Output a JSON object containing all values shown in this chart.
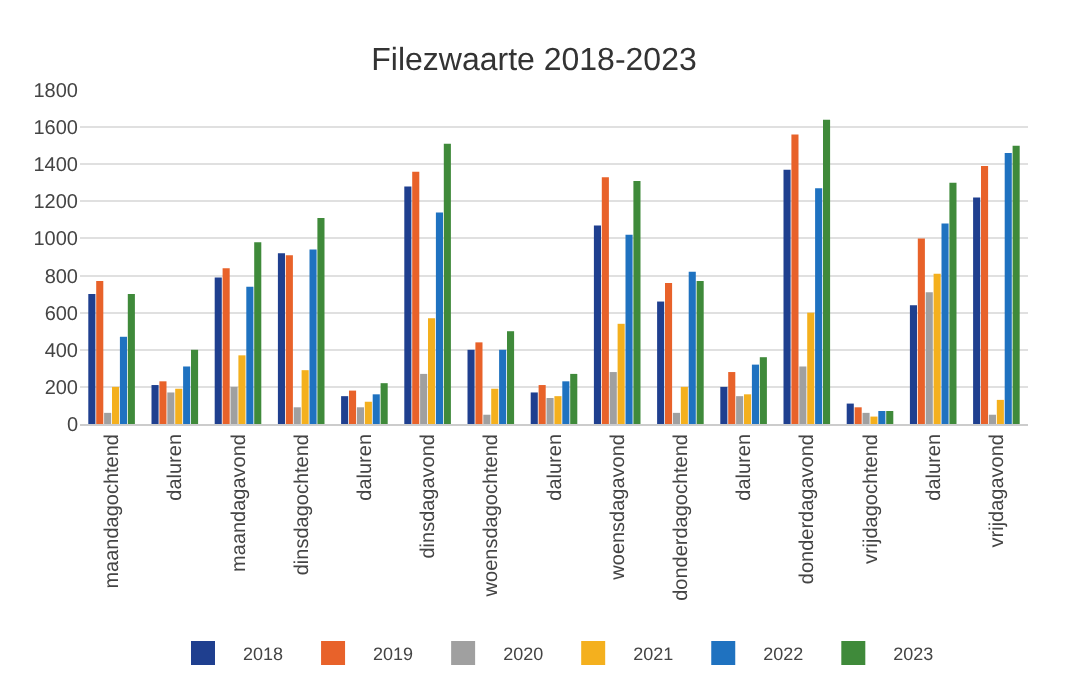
{
  "chart_data": {
    "type": "bar",
    "title": "Filezwaarte 2018-2023",
    "categories": [
      "maandagochtend",
      "daluren",
      "maandagavond",
      "dinsdagochtend",
      "daluren",
      "dinsdagavond",
      "woensdagochtend",
      "daluren",
      "woensdagavond",
      "donderdagochtend",
      "daluren",
      "donderdagavond",
      "vrijdagochtend",
      "daluren",
      "vrijdagavond"
    ],
    "series": [
      {
        "name": "2018",
        "color": "#1f3f8f",
        "values": [
          700,
          210,
          790,
          920,
          150,
          1280,
          400,
          170,
          1070,
          660,
          200,
          1370,
          110,
          640,
          1220
        ]
      },
      {
        "name": "2019",
        "color": "#e8622a",
        "values": [
          770,
          230,
          840,
          910,
          180,
          1360,
          440,
          210,
          1330,
          760,
          280,
          1560,
          90,
          1000,
          1390
        ]
      },
      {
        "name": "2020",
        "color": "#a0a0a0",
        "values": [
          60,
          170,
          200,
          90,
          90,
          270,
          50,
          140,
          280,
          60,
          150,
          310,
          60,
          710,
          50
        ]
      },
      {
        "name": "2021",
        "color": "#f4b01e",
        "values": [
          200,
          190,
          370,
          290,
          120,
          570,
          190,
          150,
          540,
          200,
          160,
          600,
          40,
          810,
          130
        ]
      },
      {
        "name": "2022",
        "color": "#1f72c0",
        "values": [
          470,
          310,
          740,
          940,
          160,
          1140,
          400,
          230,
          1020,
          820,
          320,
          1270,
          70,
          1080,
          1460
        ]
      },
      {
        "name": "2023",
        "color": "#3f8a3a",
        "values": [
          700,
          400,
          980,
          1110,
          220,
          1510,
          500,
          270,
          1310,
          770,
          360,
          1640,
          70,
          1300,
          1500
        ]
      }
    ],
    "ylim": [
      0,
      1800
    ],
    "yticks": [
      0,
      200,
      400,
      600,
      800,
      1000,
      1200,
      1400,
      1600,
      1800
    ],
    "grid": "y",
    "legend": "bottom"
  }
}
